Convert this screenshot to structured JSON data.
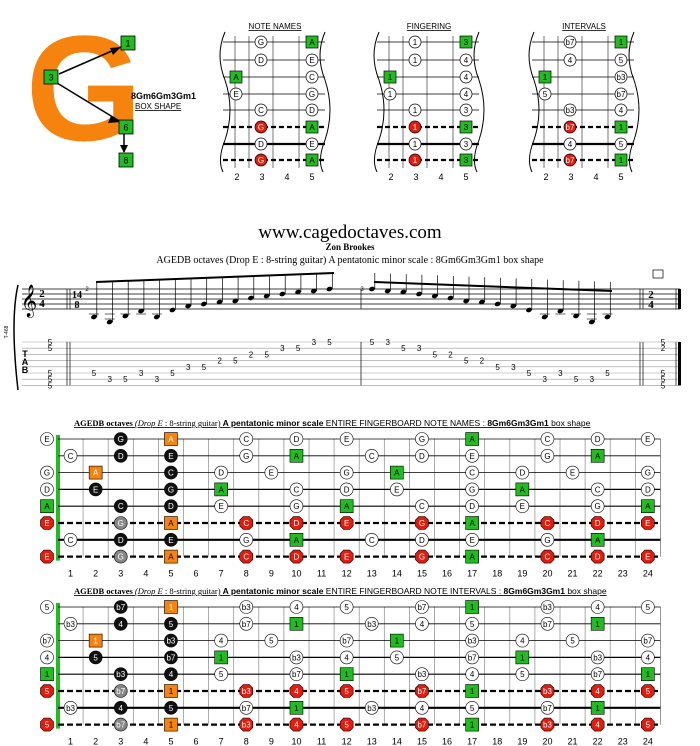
{
  "logo": {
    "letter": "G",
    "markers": [
      "1",
      "3",
      "6",
      "8"
    ]
  },
  "shape_name": "8Gm6Gm3Gm1",
  "shape_sub": "BOX SHAPE",
  "mini_titles": [
    "NOTE NAMES",
    "FINGERING",
    "INTERVALS"
  ],
  "mini_fret_nums": [
    "2",
    "3",
    "4",
    "5"
  ],
  "mini_notes": {
    "names": [
      [
        null,
        "G",
        "A"
      ],
      [
        null,
        "D",
        "E"
      ],
      [
        "A",
        null,
        "C"
      ],
      [
        "E",
        null,
        "G"
      ],
      [
        null,
        "C",
        "D"
      ],
      [
        null,
        "G",
        "A"
      ],
      [
        null,
        "D",
        "E"
      ],
      [
        null,
        "G",
        "A"
      ]
    ],
    "fingering": [
      [
        null,
        "1",
        "3"
      ],
      [
        null,
        "1",
        "4"
      ],
      [
        "1",
        null,
        "4"
      ],
      [
        "1",
        null,
        "4"
      ],
      [
        null,
        "1",
        "3"
      ],
      [
        null,
        "1",
        "3"
      ],
      [
        null,
        "1",
        "3"
      ],
      [
        null,
        "1",
        "3"
      ]
    ],
    "intervals": [
      [
        null,
        "b7",
        "1"
      ],
      [
        null,
        "4",
        "5"
      ],
      [
        "1",
        null,
        "b3"
      ],
      [
        "5",
        null,
        "b7"
      ],
      [
        null,
        "b3",
        "4"
      ],
      [
        null,
        "b7",
        "1"
      ],
      [
        null,
        "4",
        "5"
      ],
      [
        null,
        "b7",
        "1"
      ]
    ]
  },
  "site": "www.cagedoctaves.com",
  "author": "Zon Brookes",
  "subtitle": "AGEDB octaves (Drop E : 8-string guitar) A pentatonic minor scale : 8Gm6Gm3Gm1 box shape",
  "staff": {
    "time_start": [
      "2",
      "4"
    ],
    "time_mid": [
      "14",
      "8"
    ],
    "time_end": [
      "2",
      "4"
    ],
    "measure_nums": [
      "2",
      "3"
    ],
    "tuning_label": "T-468",
    "tab_letters": [
      "T",
      "A",
      "B"
    ]
  },
  "tab": {
    "m1": [
      {
        "s": 5,
        "n": "5"
      },
      {
        "s": 6,
        "n": "3"
      },
      {
        "s": 6,
        "n": "5"
      },
      {
        "s": 5,
        "n": "3"
      },
      {
        "s": 6,
        "n": "3"
      },
      {
        "s": 5,
        "n": "5"
      },
      {
        "s": 4,
        "n": "3"
      },
      {
        "s": 4,
        "n": "5"
      },
      {
        "s": 3,
        "n": "2"
      },
      {
        "s": 3,
        "n": "5"
      },
      {
        "s": 2,
        "n": "2"
      },
      {
        "s": 2,
        "n": "5"
      },
      {
        "s": 1,
        "n": "3"
      },
      {
        "s": 1,
        "n": "5"
      },
      {
        "s": 0,
        "n": "3"
      },
      {
        "s": 0,
        "n": "5"
      }
    ],
    "m2": [
      {
        "s": 0,
        "n": "5"
      },
      {
        "s": 0,
        "n": "3"
      },
      {
        "s": 1,
        "n": "5"
      },
      {
        "s": 1,
        "n": "3"
      },
      {
        "s": 2,
        "n": "5"
      },
      {
        "s": 2,
        "n": "2"
      },
      {
        "s": 3,
        "n": "5"
      },
      {
        "s": 3,
        "n": "2"
      },
      {
        "s": 4,
        "n": "5"
      },
      {
        "s": 4,
        "n": "3"
      },
      {
        "s": 5,
        "n": "5"
      },
      {
        "s": 6,
        "n": "3"
      },
      {
        "s": 5,
        "n": "3"
      },
      {
        "s": 6,
        "n": "5"
      },
      {
        "s": 6,
        "n": "3"
      },
      {
        "s": 5,
        "n": "5"
      }
    ],
    "chord_start": [
      "5",
      "5",
      "",
      "",
      "",
      "5",
      "5",
      "5"
    ],
    "chord_end": [
      "5",
      "2",
      "",
      "",
      "",
      "5",
      "5",
      "5"
    ]
  },
  "board1_title": {
    "a": "AGEDB octaves",
    "b": "(Drop E",
    "c": ": 8-string guitar)",
    "d": "A pentatonic minor scale",
    "e": "ENTIRE FINGERBOARD NOTE NAMES :",
    "f": "8Gm6Gm3Gm1",
    "g": "box shape"
  },
  "board2_title": {
    "a": "AGEDB octaves",
    "b": "(Drop E",
    "c": ": 8-string guitar)",
    "d": "A pentatonic minor scale",
    "e": "ENTIRE FINGERBOARD NOTE INTERVALS :",
    "f": "8Gm6Gm3Gm1",
    "g": "box shape"
  },
  "fret_numbers": [
    "1",
    "2",
    "3",
    "4",
    "5",
    "6",
    "7",
    "8",
    "9",
    "10",
    "11",
    "12",
    "13",
    "14",
    "15",
    "16",
    "17",
    "18",
    "19",
    "20",
    "21",
    "22",
    "23",
    "24"
  ],
  "open_names": [
    "E",
    "",
    "G",
    "D",
    "A",
    "E",
    "",
    "E"
  ],
  "open_intervals": [
    "5",
    "",
    "b7",
    "4",
    "1",
    "5",
    "",
    "5"
  ],
  "colors": {
    "orange": "#f7830f",
    "green": "#22bb22",
    "red": "#e51b0d",
    "black": "#111111"
  }
}
